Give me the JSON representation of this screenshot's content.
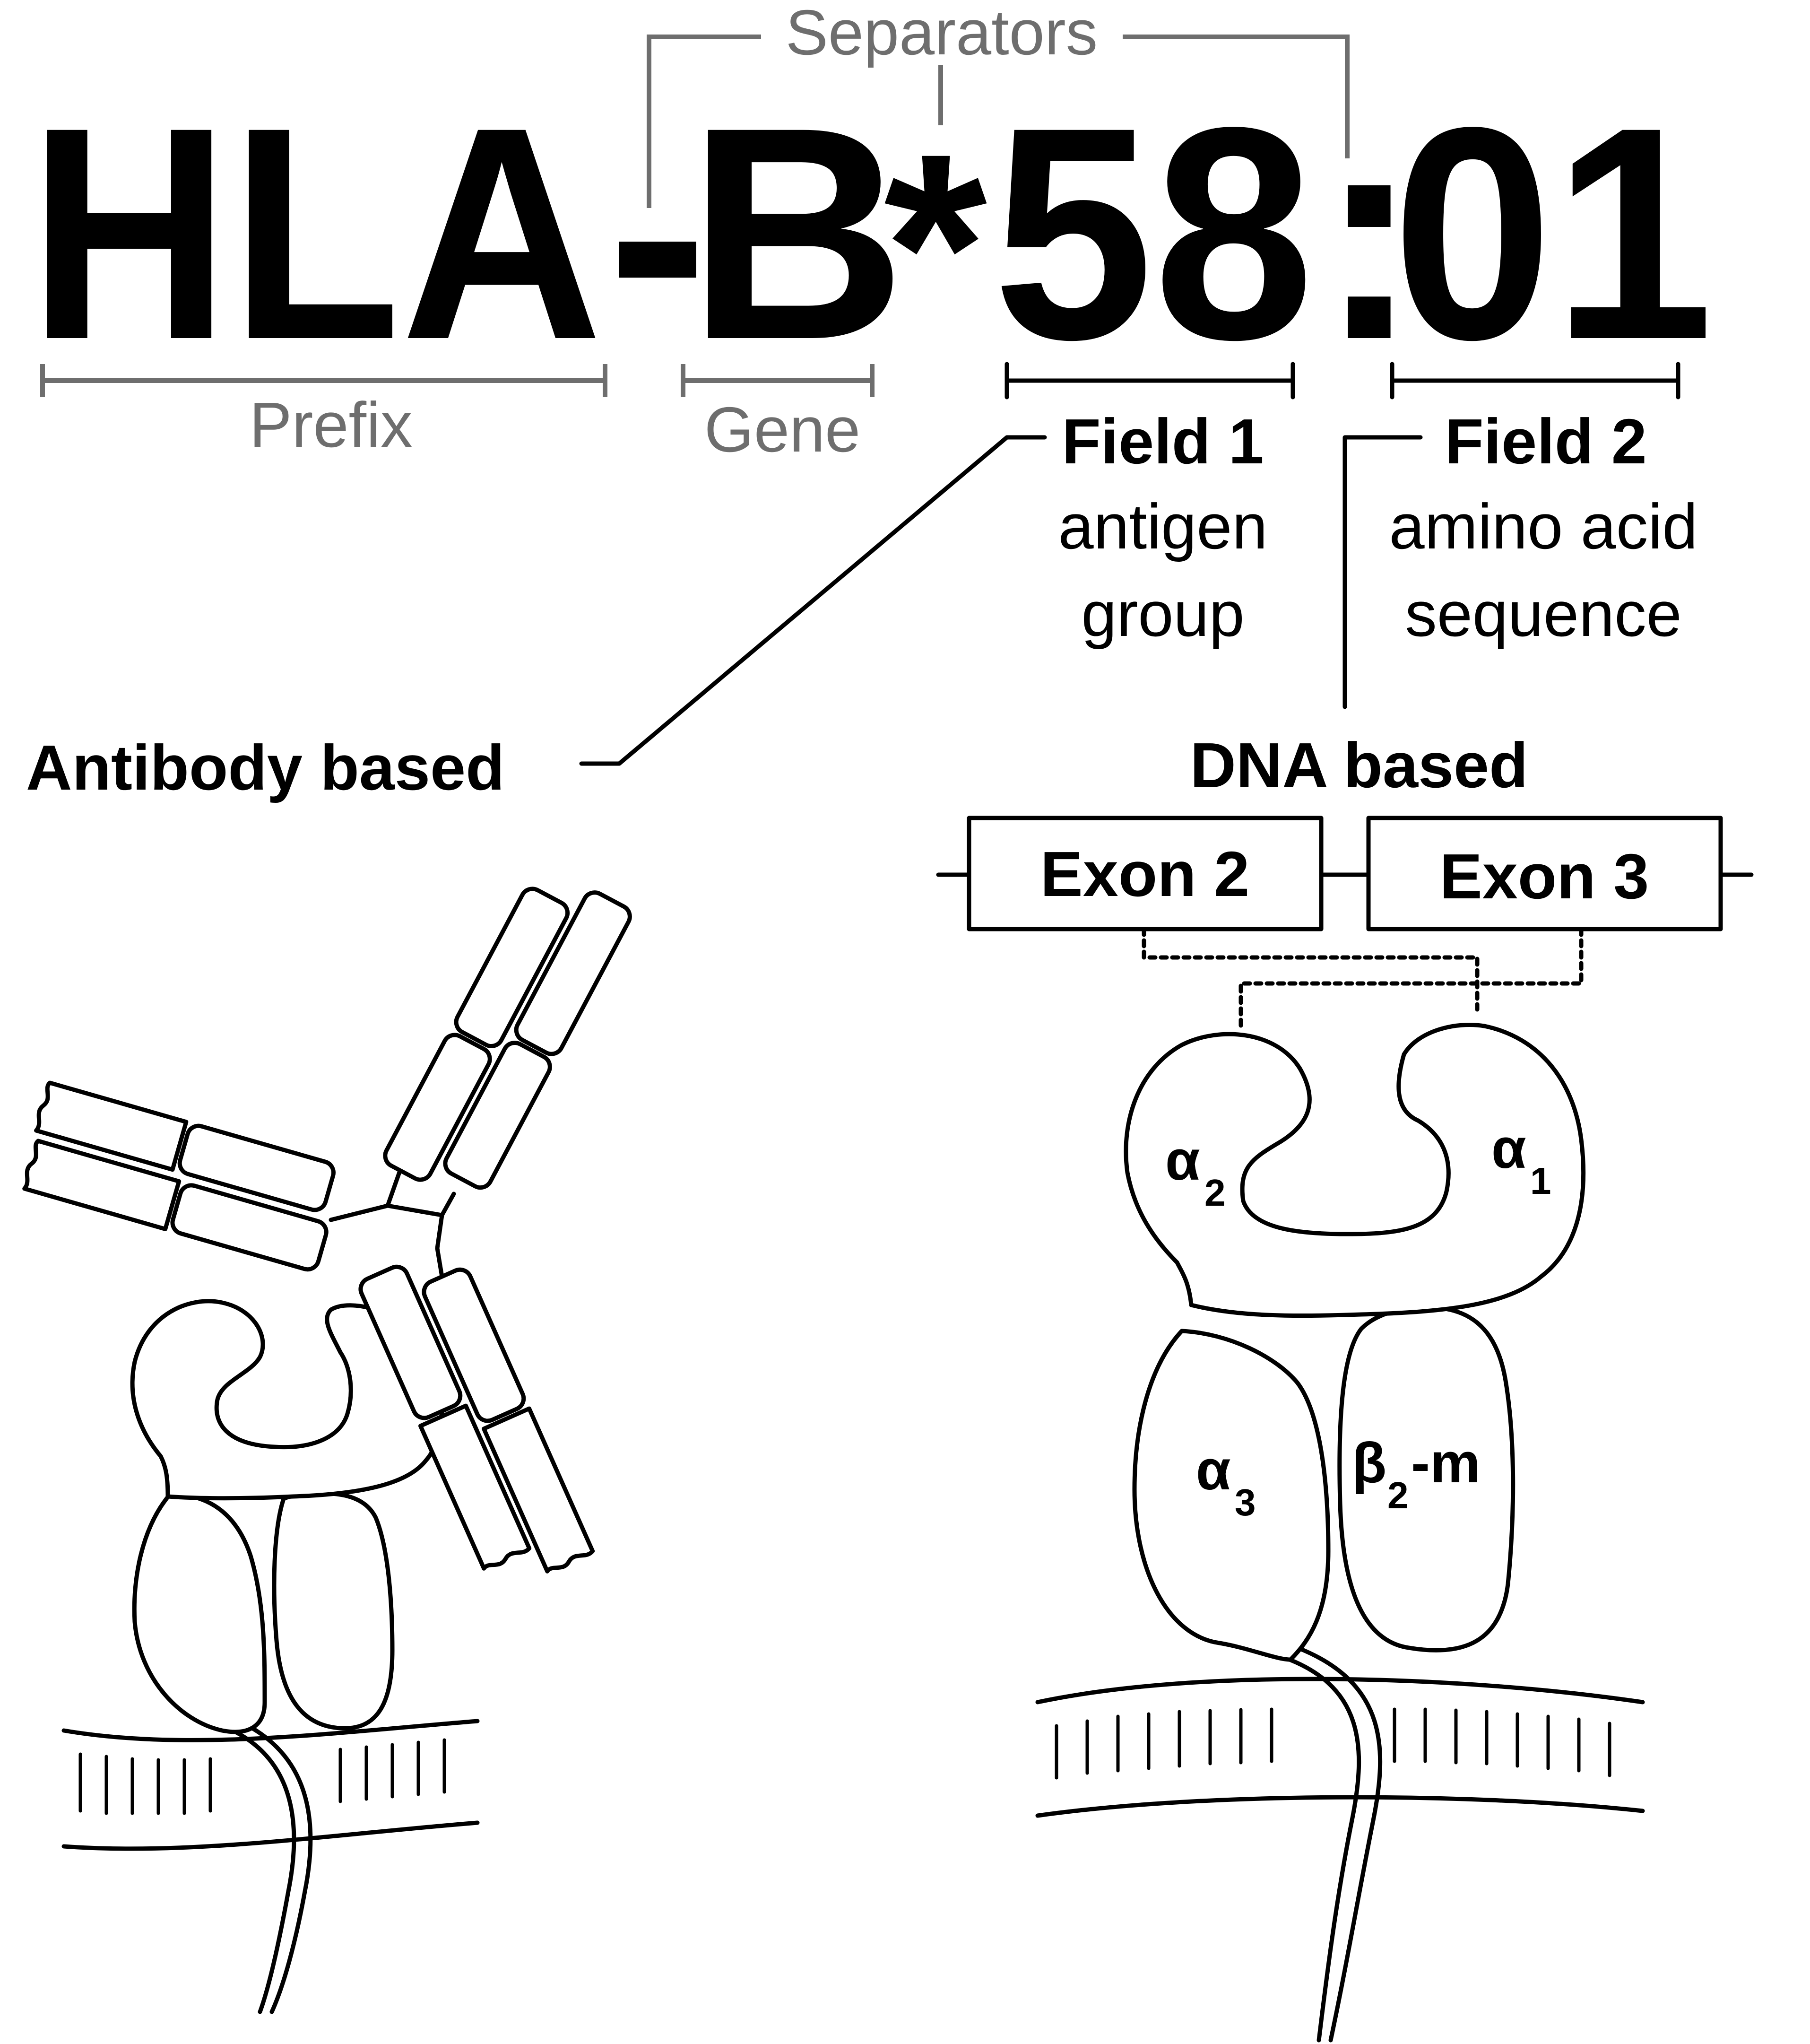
{
  "allele": {
    "prefix": "HLA",
    "dash": "-",
    "gene": "B",
    "asterisk": "*",
    "field1": "58",
    "colon": ":",
    "field2": "01"
  },
  "labels": {
    "separators": "Separators",
    "prefix": "Prefix",
    "gene": "Gene",
    "field1_title": "Field 1",
    "field1_line1": "antigen",
    "field1_line2": "group",
    "field2_title": "Field 2",
    "field2_line1": "amino acid",
    "field2_line2": "sequence",
    "antibody_based": "Antibody based",
    "dna_based": "DNA based",
    "exon2": "Exon 2",
    "exon3": "Exon 3"
  },
  "domains": {
    "alpha": "α",
    "beta": "β",
    "alpha2_sub": "2",
    "alpha1_sub": "1",
    "alpha3_sub": "3",
    "beta2_sub": "2",
    "beta2_suffix": "-m"
  },
  "colors": {
    "text": "#000000",
    "annotation": "#6e6e6e"
  }
}
